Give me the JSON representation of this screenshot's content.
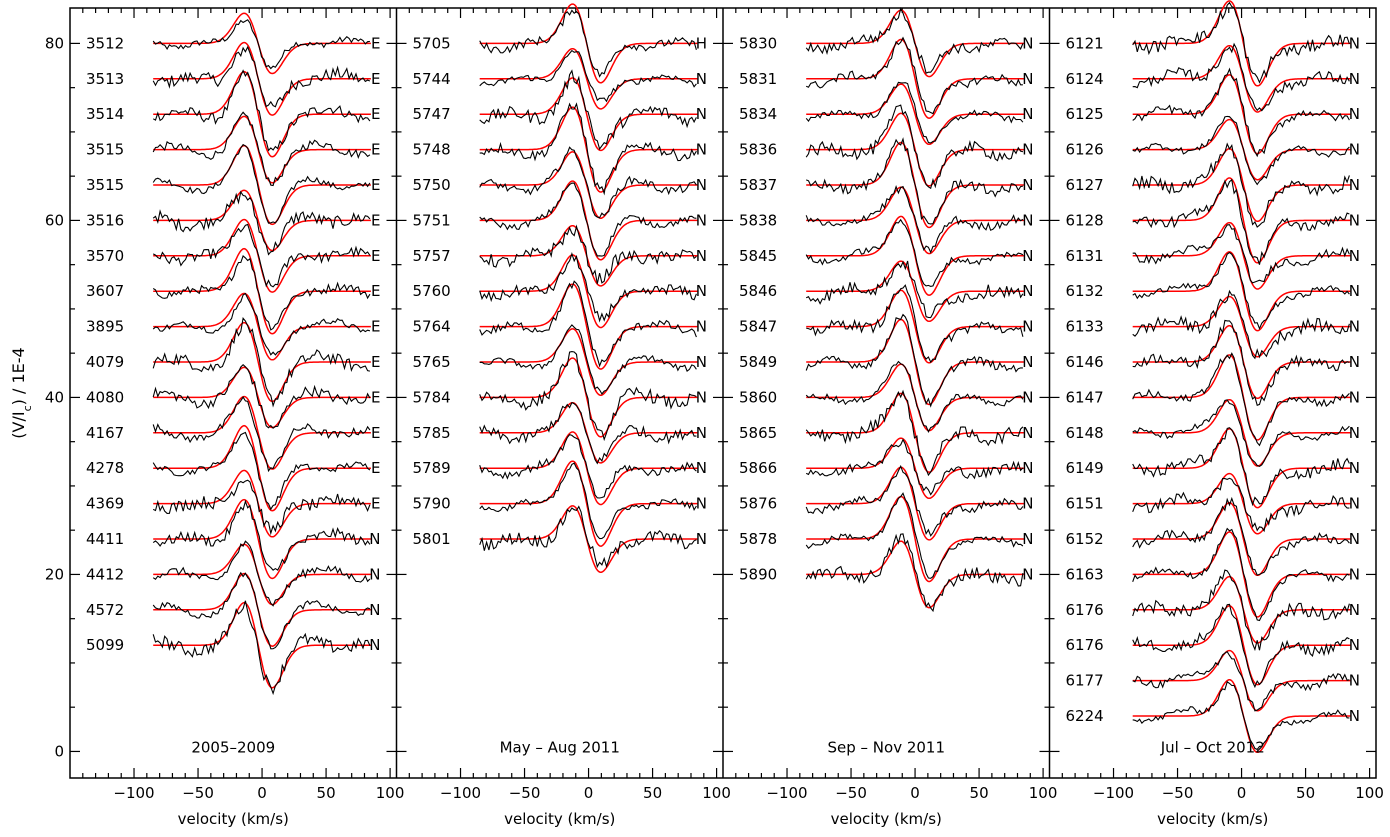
{
  "chart_data": {
    "type": "line",
    "ylabel": "(V/I_c) / 1E-4",
    "yticks": [
      0,
      20,
      40,
      60,
      80
    ],
    "ylim": [
      -3,
      84
    ],
    "colors": {
      "observed": "#000000",
      "model": "#ff0000"
    },
    "panels": [
      {
        "title": "2005–2009",
        "xlabel": "velocity (km/s)",
        "xlim": [
          -150,
          105
        ],
        "xticks": [
          -100,
          -50,
          0,
          50,
          100
        ],
        "xtick_labels": [
          "−100",
          "−50",
          "0",
          "50",
          "100"
        ],
        "profiles": [
          {
            "label": "3512",
            "flag": "E",
            "offset": 80
          },
          {
            "label": "3513",
            "flag": "E",
            "offset": 76
          },
          {
            "label": "3514",
            "flag": "E",
            "offset": 72
          },
          {
            "label": "3515",
            "flag": "E",
            "offset": 68
          },
          {
            "label": "3515",
            "flag": "E",
            "offset": 64
          },
          {
            "label": "3516",
            "flag": "E",
            "offset": 60
          },
          {
            "label": "3570",
            "flag": "E",
            "offset": 56
          },
          {
            "label": "3607",
            "flag": "E",
            "offset": 52
          },
          {
            "label": "3895",
            "flag": "E",
            "offset": 48
          },
          {
            "label": "4079",
            "flag": "E",
            "offset": 44
          },
          {
            "label": "4080",
            "flag": "E",
            "offset": 40
          },
          {
            "label": "4167",
            "flag": "E",
            "offset": 36
          },
          {
            "label": "4278",
            "flag": "E",
            "offset": 32
          },
          {
            "label": "4369",
            "flag": "E",
            "offset": 28
          },
          {
            "label": "4411",
            "flag": "N",
            "offset": 24
          },
          {
            "label": "4412",
            "flag": "N",
            "offset": 20
          },
          {
            "label": "4572",
            "flag": "N",
            "offset": 16
          },
          {
            "label": "5099",
            "flag": "N",
            "offset": 12
          }
        ]
      },
      {
        "title": "May – Aug 2011",
        "xlabel": "velocity (km/s)",
        "xlim": [
          -150,
          105
        ],
        "xticks": [
          -100,
          -50,
          0,
          50,
          100
        ],
        "xtick_labels": [
          "−100",
          "−50",
          "0",
          "50",
          "100"
        ],
        "profiles": [
          {
            "label": "5705",
            "flag": "H",
            "offset": 80
          },
          {
            "label": "5744",
            "flag": "N",
            "offset": 76
          },
          {
            "label": "5747",
            "flag": "N",
            "offset": 72
          },
          {
            "label": "5748",
            "flag": "N",
            "offset": 68
          },
          {
            "label": "5750",
            "flag": "N",
            "offset": 64
          },
          {
            "label": "5751",
            "flag": "N",
            "offset": 60
          },
          {
            "label": "5757",
            "flag": "N",
            "offset": 56
          },
          {
            "label": "5760",
            "flag": "N",
            "offset": 52
          },
          {
            "label": "5764",
            "flag": "N",
            "offset": 48
          },
          {
            "label": "5765",
            "flag": "N",
            "offset": 44
          },
          {
            "label": "5784",
            "flag": "N",
            "offset": 40
          },
          {
            "label": "5785",
            "flag": "N",
            "offset": 36
          },
          {
            "label": "5789",
            "flag": "N",
            "offset": 32
          },
          {
            "label": "5790",
            "flag": "N",
            "offset": 28
          },
          {
            "label": "5801",
            "flag": "N",
            "offset": 24
          }
        ]
      },
      {
        "title": "Sep – Nov 2011",
        "xlabel": "velocity (km/s)",
        "xlim": [
          -150,
          105
        ],
        "xticks": [
          -100,
          -50,
          0,
          50,
          100
        ],
        "xtick_labels": [
          "−100",
          "−50",
          "0",
          "50",
          "100"
        ],
        "profiles": [
          {
            "label": "5830",
            "flag": "N",
            "offset": 80
          },
          {
            "label": "5831",
            "flag": "N",
            "offset": 76
          },
          {
            "label": "5834",
            "flag": "N",
            "offset": 72
          },
          {
            "label": "5836",
            "flag": "N",
            "offset": 68
          },
          {
            "label": "5837",
            "flag": "N",
            "offset": 64
          },
          {
            "label": "5838",
            "flag": "N",
            "offset": 60
          },
          {
            "label": "5845",
            "flag": "N",
            "offset": 56
          },
          {
            "label": "5846",
            "flag": "N",
            "offset": 52
          },
          {
            "label": "5847",
            "flag": "N",
            "offset": 48
          },
          {
            "label": "5849",
            "flag": "N",
            "offset": 44
          },
          {
            "label": "5860",
            "flag": "N",
            "offset": 40
          },
          {
            "label": "5865",
            "flag": "N",
            "offset": 36
          },
          {
            "label": "5866",
            "flag": "N",
            "offset": 32
          },
          {
            "label": "5876",
            "flag": "N",
            "offset": 28
          },
          {
            "label": "5878",
            "flag": "N",
            "offset": 24
          },
          {
            "label": "5890",
            "flag": "N",
            "offset": 20
          }
        ]
      },
      {
        "title": "Jul – Oct 2012",
        "xlabel": "velocity (km/s)",
        "xlim": [
          -150,
          105
        ],
        "xticks": [
          -100,
          -50,
          0,
          50,
          100
        ],
        "xtick_labels": [
          "−100",
          "−50",
          "0",
          "50",
          "100"
        ],
        "profiles": [
          {
            "label": "6121",
            "flag": "N",
            "offset": 80
          },
          {
            "label": "6124",
            "flag": "N",
            "offset": 76
          },
          {
            "label": "6125",
            "flag": "N",
            "offset": 72
          },
          {
            "label": "6126",
            "flag": "N",
            "offset": 68
          },
          {
            "label": "6127",
            "flag": "N",
            "offset": 64
          },
          {
            "label": "6128",
            "flag": "N",
            "offset": 60
          },
          {
            "label": "6131",
            "flag": "N",
            "offset": 56
          },
          {
            "label": "6132",
            "flag": "N",
            "offset": 52
          },
          {
            "label": "6133",
            "flag": "N",
            "offset": 48
          },
          {
            "label": "6146",
            "flag": "N",
            "offset": 44
          },
          {
            "label": "6147",
            "flag": "N",
            "offset": 40
          },
          {
            "label": "6148",
            "flag": "N",
            "offset": 36
          },
          {
            "label": "6149",
            "flag": "N",
            "offset": 32
          },
          {
            "label": "6151",
            "flag": "N",
            "offset": 28
          },
          {
            "label": "6152",
            "flag": "N",
            "offset": 24
          },
          {
            "label": "6163",
            "flag": "N",
            "offset": 20
          },
          {
            "label": "6176",
            "flag": "N",
            "offset": 16
          },
          {
            "label": "6176",
            "flag": "N",
            "offset": 12
          },
          {
            "label": "6177",
            "flag": "N",
            "offset": 8
          },
          {
            "label": "6224",
            "flag": "N",
            "offset": 4
          }
        ]
      }
    ]
  }
}
